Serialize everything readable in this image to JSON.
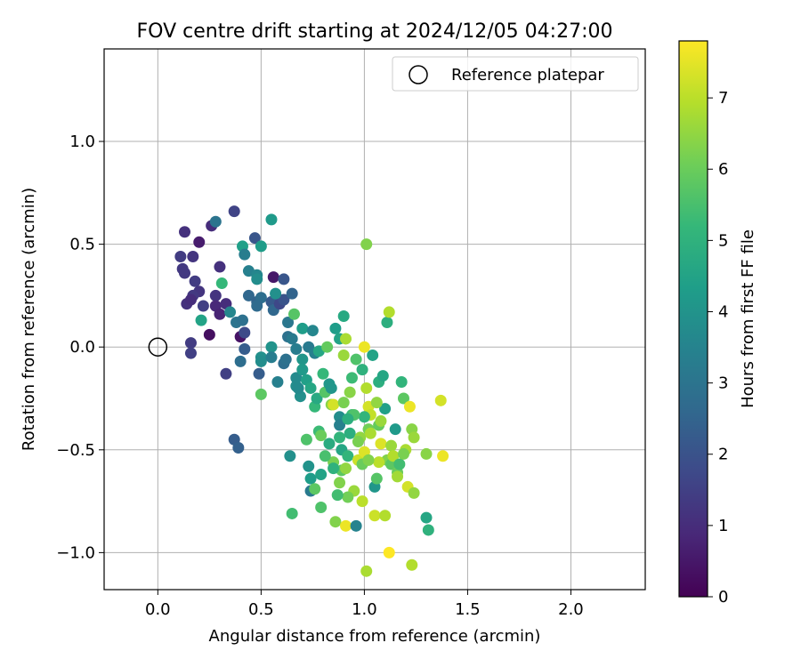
{
  "chart_data": {
    "type": "scatter",
    "title": "FOV centre drift starting at 2024/12/05 04:27:00",
    "xlabel": "Angular distance from reference (arcmin)",
    "ylabel": "Rotation from reference (arcmin)",
    "xlim": [
      -0.26,
      2.36
    ],
    "ylim": [
      -1.18,
      1.45
    ],
    "xticks": [
      0.0,
      0.5,
      1.0,
      1.5,
      2.0
    ],
    "xtick_labels": [
      "0.0",
      "0.5",
      "1.0",
      "1.5",
      "2.0"
    ],
    "yticks": [
      -1.0,
      -0.5,
      0.0,
      0.5,
      1.0
    ],
    "ytick_labels": [
      "−1.0",
      "−0.5",
      "0.0",
      "0.5",
      "1.0"
    ],
    "grid": true,
    "legend": {
      "placement": "top-right",
      "entries": [
        {
          "label": "Reference platepar",
          "marker": "open-circle"
        }
      ]
    },
    "reference_point": {
      "x": 0.0,
      "y": 0.0
    },
    "colorbar": {
      "label": "Hours from first FF file",
      "colormap": "viridis",
      "range": [
        0,
        7.8
      ],
      "ticks": [
        0,
        1,
        2,
        3,
        4,
        5,
        6,
        7
      ],
      "tick_labels": [
        "0",
        "1",
        "2",
        "3",
        "4",
        "5",
        "6",
        "7"
      ]
    },
    "points": [
      {
        "x": 0.11,
        "y": 0.44,
        "t": 1.4
      },
      {
        "x": 0.12,
        "y": 0.38,
        "t": 1.3
      },
      {
        "x": 0.13,
        "y": 0.56,
        "t": 1.1
      },
      {
        "x": 0.2,
        "y": 0.51,
        "t": 0.6
      },
      {
        "x": 0.26,
        "y": 0.59,
        "t": 1.0
      },
      {
        "x": 0.28,
        "y": 0.61,
        "t": 3.0
      },
      {
        "x": 0.37,
        "y": 0.66,
        "t": 1.6
      },
      {
        "x": 0.17,
        "y": 0.44,
        "t": 1.2
      },
      {
        "x": 0.13,
        "y": 0.36,
        "t": 1.3
      },
      {
        "x": 0.18,
        "y": 0.32,
        "t": 1.4
      },
      {
        "x": 0.3,
        "y": 0.39,
        "t": 1.1
      },
      {
        "x": 0.31,
        "y": 0.31,
        "t": 5.2
      },
      {
        "x": 0.2,
        "y": 0.27,
        "t": 1.2
      },
      {
        "x": 0.17,
        "y": 0.25,
        "t": 1.3
      },
      {
        "x": 0.14,
        "y": 0.21,
        "t": 1.1
      },
      {
        "x": 0.16,
        "y": 0.23,
        "t": 1.0
      },
      {
        "x": 0.22,
        "y": 0.2,
        "t": 1.5
      },
      {
        "x": 0.28,
        "y": 0.25,
        "t": 1.2
      },
      {
        "x": 0.28,
        "y": 0.2,
        "t": 0.9
      },
      {
        "x": 0.3,
        "y": 0.16,
        "t": 0.8
      },
      {
        "x": 0.33,
        "y": 0.21,
        "t": 1.0
      },
      {
        "x": 0.35,
        "y": 0.17,
        "t": 3.6
      },
      {
        "x": 0.21,
        "y": 0.13,
        "t": 4.5
      },
      {
        "x": 0.25,
        "y": 0.06,
        "t": 0.3
      },
      {
        "x": 0.16,
        "y": 0.02,
        "t": 1.4
      },
      {
        "x": 0.16,
        "y": -0.03,
        "t": 1.5
      },
      {
        "x": 0.33,
        "y": -0.13,
        "t": 1.5
      },
      {
        "x": 0.4,
        "y": 0.05,
        "t": 0.4
      },
      {
        "x": 0.42,
        "y": 0.07,
        "t": 1.8
      },
      {
        "x": 0.38,
        "y": 0.12,
        "t": 3.0
      },
      {
        "x": 0.41,
        "y": 0.13,
        "t": 2.9
      },
      {
        "x": 0.42,
        "y": -0.01,
        "t": 2.3
      },
      {
        "x": 0.4,
        "y": -0.07,
        "t": 2.8
      },
      {
        "x": 0.44,
        "y": 0.25,
        "t": 2.6
      },
      {
        "x": 0.48,
        "y": 0.22,
        "t": 2.5
      },
      {
        "x": 0.5,
        "y": 0.24,
        "t": 2.8
      },
      {
        "x": 0.48,
        "y": 0.2,
        "t": 2.7
      },
      {
        "x": 0.55,
        "y": 0.22,
        "t": 2.2
      },
      {
        "x": 0.56,
        "y": 0.18,
        "t": 2.6
      },
      {
        "x": 0.59,
        "y": 0.21,
        "t": 1.7
      },
      {
        "x": 0.61,
        "y": 0.23,
        "t": 2.0
      },
      {
        "x": 0.57,
        "y": 0.26,
        "t": 3.9
      },
      {
        "x": 0.56,
        "y": 0.34,
        "t": 0.5
      },
      {
        "x": 0.61,
        "y": 0.33,
        "t": 2.1
      },
      {
        "x": 0.65,
        "y": 0.26,
        "t": 2.5
      },
      {
        "x": 0.41,
        "y": 0.49,
        "t": 4.4
      },
      {
        "x": 0.42,
        "y": 0.45,
        "t": 3.3
      },
      {
        "x": 0.47,
        "y": 0.53,
        "t": 2.1
      },
      {
        "x": 0.5,
        "y": 0.49,
        "t": 4.3
      },
      {
        "x": 0.55,
        "y": 0.62,
        "t": 4.2
      },
      {
        "x": 0.44,
        "y": 0.37,
        "t": 3.4
      },
      {
        "x": 0.48,
        "y": 0.35,
        "t": 3.6
      },
      {
        "x": 0.48,
        "y": 0.33,
        "t": 3.8
      },
      {
        "x": 0.5,
        "y": -0.05,
        "t": 3.9
      },
      {
        "x": 0.5,
        "y": -0.07,
        "t": 3.8
      },
      {
        "x": 0.49,
        "y": -0.13,
        "t": 2.3
      },
      {
        "x": 0.5,
        "y": -0.23,
        "t": 5.8
      },
      {
        "x": 0.37,
        "y": -0.45,
        "t": 2.3
      },
      {
        "x": 0.39,
        "y": -0.49,
        "t": 2.4
      },
      {
        "x": 0.55,
        "y": 0.0,
        "t": 4.0
      },
      {
        "x": 0.55,
        "y": -0.05,
        "t": 3.3
      },
      {
        "x": 0.58,
        "y": -0.17,
        "t": 3.4
      },
      {
        "x": 0.61,
        "y": -0.08,
        "t": 2.8
      },
      {
        "x": 0.62,
        "y": -0.06,
        "t": 2.9
      },
      {
        "x": 0.63,
        "y": 0.12,
        "t": 3.1
      },
      {
        "x": 0.63,
        "y": 0.05,
        "t": 2.9
      },
      {
        "x": 0.65,
        "y": 0.04,
        "t": 3.2
      },
      {
        "x": 0.66,
        "y": 0.16,
        "t": 5.7
      },
      {
        "x": 0.67,
        "y": -0.01,
        "t": 3.3
      },
      {
        "x": 0.64,
        "y": -0.53,
        "t": 3.9
      },
      {
        "x": 0.65,
        "y": -0.81,
        "t": 5.4
      },
      {
        "x": 0.67,
        "y": -0.19,
        "t": 3.8
      },
      {
        "x": 0.67,
        "y": -0.15,
        "t": 3.7
      },
      {
        "x": 0.69,
        "y": -0.24,
        "t": 3.9
      },
      {
        "x": 0.7,
        "y": -0.06,
        "t": 4.1
      },
      {
        "x": 0.7,
        "y": 0.09,
        "t": 4.3
      },
      {
        "x": 0.73,
        "y": 0.0,
        "t": 3.2
      },
      {
        "x": 0.75,
        "y": 0.08,
        "t": 3.6
      },
      {
        "x": 0.76,
        "y": -0.03,
        "t": 3.4
      },
      {
        "x": 0.78,
        "y": -0.02,
        "t": 4.6
      },
      {
        "x": 0.72,
        "y": -0.16,
        "t": 4.4
      },
      {
        "x": 0.72,
        "y": -0.45,
        "t": 5.6
      },
      {
        "x": 0.73,
        "y": -0.58,
        "t": 4.0
      },
      {
        "x": 0.74,
        "y": -0.64,
        "t": 4.3
      },
      {
        "x": 0.74,
        "y": -0.7,
        "t": 3.2
      },
      {
        "x": 0.76,
        "y": -0.69,
        "t": 5.8
      },
      {
        "x": 0.76,
        "y": -0.29,
        "t": 5.2
      },
      {
        "x": 0.77,
        "y": -0.25,
        "t": 4.7
      },
      {
        "x": 0.78,
        "y": -0.41,
        "t": 5.3
      },
      {
        "x": 0.79,
        "y": -0.43,
        "t": 6.0
      },
      {
        "x": 0.79,
        "y": -0.78,
        "t": 5.6
      },
      {
        "x": 0.79,
        "y": -0.62,
        "t": 4.5
      },
      {
        "x": 0.81,
        "y": -0.22,
        "t": 5.7
      },
      {
        "x": 0.82,
        "y": 0.0,
        "t": 5.9
      },
      {
        "x": 0.83,
        "y": -0.18,
        "t": 4.1
      },
      {
        "x": 0.84,
        "y": -0.2,
        "t": 4.1
      },
      {
        "x": 0.84,
        "y": -0.28,
        "t": 6.4
      },
      {
        "x": 0.85,
        "y": -0.28,
        "t": 7.3
      },
      {
        "x": 0.85,
        "y": -0.56,
        "t": 6.2
      },
      {
        "x": 0.86,
        "y": -0.85,
        "t": 6.3
      },
      {
        "x": 0.86,
        "y": 0.09,
        "t": 4.3
      },
      {
        "x": 0.88,
        "y": 0.04,
        "t": 4.5
      },
      {
        "x": 0.88,
        "y": -0.34,
        "t": 3.8
      },
      {
        "x": 0.88,
        "y": -0.38,
        "t": 3.4
      },
      {
        "x": 0.88,
        "y": -0.66,
        "t": 6.3
      },
      {
        "x": 0.89,
        "y": -0.5,
        "t": 4.6
      },
      {
        "x": 0.89,
        "y": -0.6,
        "t": 5.8
      },
      {
        "x": 0.9,
        "y": 0.15,
        "t": 4.7
      },
      {
        "x": 0.9,
        "y": -0.04,
        "t": 6.6
      },
      {
        "x": 0.91,
        "y": 0.04,
        "t": 6.8
      },
      {
        "x": 0.91,
        "y": -0.59,
        "t": 6.5
      },
      {
        "x": 0.91,
        "y": -0.87,
        "t": 7.6
      },
      {
        "x": 0.92,
        "y": -0.53,
        "t": 5.1
      },
      {
        "x": 0.93,
        "y": -0.22,
        "t": 6.4
      },
      {
        "x": 0.93,
        "y": -0.42,
        "t": 4.9
      },
      {
        "x": 0.94,
        "y": -0.33,
        "t": 5.3
      },
      {
        "x": 0.95,
        "y": -0.7,
        "t": 6.6
      },
      {
        "x": 0.96,
        "y": -0.87,
        "t": 3.5
      },
      {
        "x": 0.96,
        "y": -0.06,
        "t": 5.6
      },
      {
        "x": 0.97,
        "y": -0.55,
        "t": 7.2
      },
      {
        "x": 0.98,
        "y": -0.44,
        "t": 6.5
      },
      {
        "x": 0.99,
        "y": -0.75,
        "t": 7.0
      },
      {
        "x": 1.0,
        "y": 0.0,
        "t": 7.6
      },
      {
        "x": 1.0,
        "y": -0.51,
        "t": 7.4
      },
      {
        "x": 1.01,
        "y": -1.09,
        "t": 6.8
      },
      {
        "x": 1.01,
        "y": 0.5,
        "t": 6.3
      },
      {
        "x": 1.01,
        "y": -0.2,
        "t": 6.9
      },
      {
        "x": 1.02,
        "y": -0.29,
        "t": 7.3
      },
      {
        "x": 1.02,
        "y": -0.4,
        "t": 6.1
      },
      {
        "x": 1.03,
        "y": -0.33,
        "t": 7.1
      },
      {
        "x": 1.04,
        "y": -0.04,
        "t": 4.5
      },
      {
        "x": 1.05,
        "y": -0.82,
        "t": 7.2
      },
      {
        "x": 1.05,
        "y": -0.68,
        "t": 4.1
      },
      {
        "x": 1.06,
        "y": -0.64,
        "t": 5.7
      },
      {
        "x": 1.07,
        "y": -0.38,
        "t": 5.9
      },
      {
        "x": 1.07,
        "y": -0.17,
        "t": 4.9
      },
      {
        "x": 1.08,
        "y": -0.47,
        "t": 7.4
      },
      {
        "x": 1.09,
        "y": -0.14,
        "t": 4.6
      },
      {
        "x": 1.1,
        "y": -0.82,
        "t": 6.9
      },
      {
        "x": 1.1,
        "y": -0.3,
        "t": 4.4
      },
      {
        "x": 1.11,
        "y": -0.55,
        "t": 6.3
      },
      {
        "x": 1.11,
        "y": 0.12,
        "t": 4.9
      },
      {
        "x": 1.12,
        "y": 0.17,
        "t": 6.9
      },
      {
        "x": 1.12,
        "y": -1.0,
        "t": 7.8
      },
      {
        "x": 1.13,
        "y": -0.57,
        "t": 5.8
      },
      {
        "x": 1.13,
        "y": -0.48,
        "t": 6.6
      },
      {
        "x": 1.14,
        "y": -0.53,
        "t": 6.9
      },
      {
        "x": 1.15,
        "y": -0.4,
        "t": 4.2
      },
      {
        "x": 1.16,
        "y": -0.61,
        "t": 6.0
      },
      {
        "x": 1.17,
        "y": -0.57,
        "t": 5.4
      },
      {
        "x": 1.18,
        "y": -0.17,
        "t": 5.1
      },
      {
        "x": 1.19,
        "y": -0.25,
        "t": 5.8
      },
      {
        "x": 1.2,
        "y": -0.5,
        "t": 6.8
      },
      {
        "x": 1.21,
        "y": -0.68,
        "t": 7.3
      },
      {
        "x": 1.22,
        "y": -0.29,
        "t": 7.6
      },
      {
        "x": 1.23,
        "y": -1.06,
        "t": 6.9
      },
      {
        "x": 1.23,
        "y": -0.4,
        "t": 6.4
      },
      {
        "x": 1.24,
        "y": -0.44,
        "t": 6.6
      },
      {
        "x": 1.24,
        "y": -0.71,
        "t": 6.5
      },
      {
        "x": 1.3,
        "y": -0.52,
        "t": 6.4
      },
      {
        "x": 1.3,
        "y": -0.83,
        "t": 4.6
      },
      {
        "x": 1.31,
        "y": -0.89,
        "t": 5.0
      },
      {
        "x": 1.37,
        "y": -0.26,
        "t": 7.3
      },
      {
        "x": 1.38,
        "y": -0.53,
        "t": 7.6
      },
      {
        "x": 1.16,
        "y": -0.63,
        "t": 6.7
      },
      {
        "x": 1.07,
        "y": -0.56,
        "t": 7.0
      },
      {
        "x": 1.0,
        "y": -0.34,
        "t": 5.1
      },
      {
        "x": 0.95,
        "y": -0.33,
        "t": 5.6
      },
      {
        "x": 0.97,
        "y": -0.46,
        "t": 6.2
      },
      {
        "x": 0.99,
        "y": -0.57,
        "t": 6.0
      },
      {
        "x": 1.03,
        "y": -0.42,
        "t": 6.8
      },
      {
        "x": 1.08,
        "y": -0.36,
        "t": 6.6
      },
      {
        "x": 0.92,
        "y": -0.73,
        "t": 6.1
      },
      {
        "x": 0.87,
        "y": -0.72,
        "t": 5.4
      },
      {
        "x": 0.85,
        "y": -0.59,
        "t": 5.0
      },
      {
        "x": 0.81,
        "y": -0.53,
        "t": 5.5
      },
      {
        "x": 0.83,
        "y": -0.47,
        "t": 4.8
      },
      {
        "x": 0.7,
        "y": -0.11,
        "t": 4.2
      },
      {
        "x": 0.74,
        "y": -0.2,
        "t": 4.6
      },
      {
        "x": 0.8,
        "y": -0.13,
        "t": 5.2
      },
      {
        "x": 0.68,
        "y": -0.2,
        "t": 3.7
      },
      {
        "x": 0.9,
        "y": -0.27,
        "t": 6.2
      },
      {
        "x": 0.94,
        "y": -0.15,
        "t": 5.3
      },
      {
        "x": 0.99,
        "y": -0.11,
        "t": 5.0
      },
      {
        "x": 1.06,
        "y": -0.27,
        "t": 6.5
      },
      {
        "x": 1.02,
        "y": -0.55,
        "t": 6.3
      },
      {
        "x": 1.19,
        "y": -0.52,
        "t": 6.2
      },
      {
        "x": 0.88,
        "y": -0.44,
        "t": 5.1
      },
      {
        "x": 0.92,
        "y": -0.35,
        "t": 4.9
      }
    ]
  }
}
